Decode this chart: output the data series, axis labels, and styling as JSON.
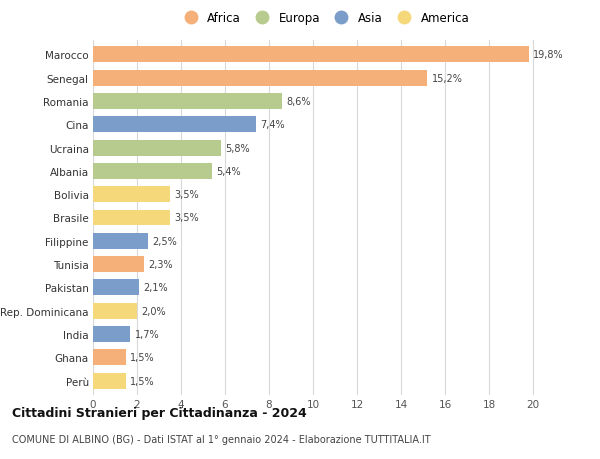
{
  "countries": [
    "Marocco",
    "Senegal",
    "Romania",
    "Cina",
    "Ucraina",
    "Albania",
    "Bolivia",
    "Brasile",
    "Filippine",
    "Tunisia",
    "Pakistan",
    "Rep. Dominicana",
    "India",
    "Ghana",
    "Perù"
  ],
  "values": [
    19.8,
    15.2,
    8.6,
    7.4,
    5.8,
    5.4,
    3.5,
    3.5,
    2.5,
    2.3,
    2.1,
    2.0,
    1.7,
    1.5,
    1.5
  ],
  "labels": [
    "19,8%",
    "15,2%",
    "8,6%",
    "7,4%",
    "5,8%",
    "5,4%",
    "3,5%",
    "3,5%",
    "2,5%",
    "2,3%",
    "2,1%",
    "2,0%",
    "1,7%",
    "1,5%",
    "1,5%"
  ],
  "continents": [
    "Africa",
    "Africa",
    "Europa",
    "Asia",
    "Europa",
    "Europa",
    "America",
    "America",
    "Asia",
    "Africa",
    "Asia",
    "America",
    "Asia",
    "Africa",
    "America"
  ],
  "colors": {
    "Africa": "#F5B07A",
    "Europa": "#B8CB8E",
    "Asia": "#7A9EC9",
    "America": "#F5D87A"
  },
  "legend_order": [
    "Africa",
    "Europa",
    "Asia",
    "America"
  ],
  "title": "Cittadini Stranieri per Cittadinanza - 2024",
  "subtitle": "COMUNE DI ALBINO (BG) - Dati ISTAT al 1° gennaio 2024 - Elaborazione TUTTITALIA.IT",
  "xlim": [
    0,
    21
  ],
  "xticks": [
    0,
    2,
    4,
    6,
    8,
    10,
    12,
    14,
    16,
    18,
    20
  ],
  "bg_color": "#ffffff",
  "grid_color": "#d8d8d8",
  "bar_height": 0.68
}
